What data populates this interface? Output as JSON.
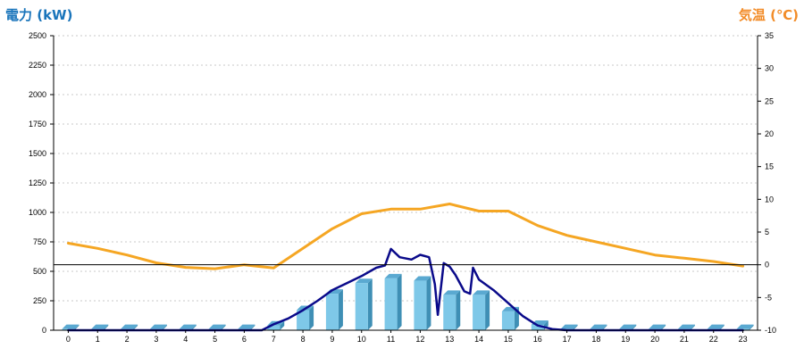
{
  "chart_data": {
    "type": "bar",
    "x": [
      0,
      1,
      2,
      3,
      4,
      5,
      6,
      7,
      8,
      9,
      10,
      11,
      12,
      13,
      14,
      15,
      16,
      17,
      18,
      19,
      20,
      21,
      22,
      23
    ],
    "x_tick_labels": [
      "0",
      "1",
      "2",
      "3",
      "4",
      "5",
      "6",
      "7",
      "8",
      "9",
      "10",
      "11",
      "12",
      "13",
      "14",
      "15",
      "16",
      "17",
      "18",
      "19",
      "20",
      "21",
      "22",
      "23"
    ],
    "ylabel_left": "電力 (kW)",
    "ylabel_right": "気温 (℃)",
    "ylim_left": [
      0,
      2500
    ],
    "yticks_left": [
      0,
      250,
      500,
      750,
      1000,
      1250,
      1500,
      1750,
      2000,
      2250,
      2500
    ],
    "ylim_right": [
      -10,
      35
    ],
    "yticks_right": [
      -10,
      -5,
      0,
      5,
      10,
      15,
      20,
      25,
      30,
      35
    ],
    "grid": true,
    "series": [
      {
        "kind": "bar",
        "axis": "left",
        "values": [
          10,
          10,
          10,
          10,
          10,
          10,
          10,
          40,
          170,
          310,
          400,
          440,
          420,
          300,
          300,
          160,
          45,
          10,
          10,
          10,
          10,
          10,
          10,
          10
        ],
        "color": "#7ec8e8"
      },
      {
        "kind": "line",
        "axis": "left",
        "x": [
          0,
          1,
          2,
          3,
          4,
          5,
          6,
          6.6,
          7,
          7.5,
          8,
          8.5,
          9,
          9.5,
          10,
          10.5,
          10.8,
          11,
          11.3,
          11.7,
          12,
          12.3,
          12.5,
          12.6,
          12.8,
          13,
          13.2,
          13.5,
          13.7,
          13.8,
          14,
          14.5,
          15,
          15.5,
          16,
          16.5,
          17,
          18,
          19,
          20,
          21,
          22,
          23
        ],
        "values": [
          0,
          0,
          0,
          0,
          0,
          0,
          0,
          0,
          50,
          100,
          170,
          250,
          340,
          400,
          460,
          530,
          550,
          690,
          620,
          600,
          640,
          620,
          390,
          130,
          570,
          540,
          470,
          330,
          310,
          530,
          430,
          340,
          230,
          120,
          40,
          10,
          0,
          0,
          0,
          0,
          0,
          0,
          0
        ],
        "color": "#0a0a8a"
      },
      {
        "kind": "line",
        "axis": "right",
        "values": [
          3.3,
          2.5,
          1.5,
          0.3,
          -0.4,
          -0.6,
          0.0,
          -0.5,
          2.5,
          5.5,
          7.8,
          8.5,
          8.5,
          9.3,
          8.2,
          8.2,
          6.0,
          4.5,
          3.5,
          2.5,
          1.5,
          1.0,
          0.5,
          -0.2
        ],
        "color": "#f5a623"
      }
    ]
  }
}
